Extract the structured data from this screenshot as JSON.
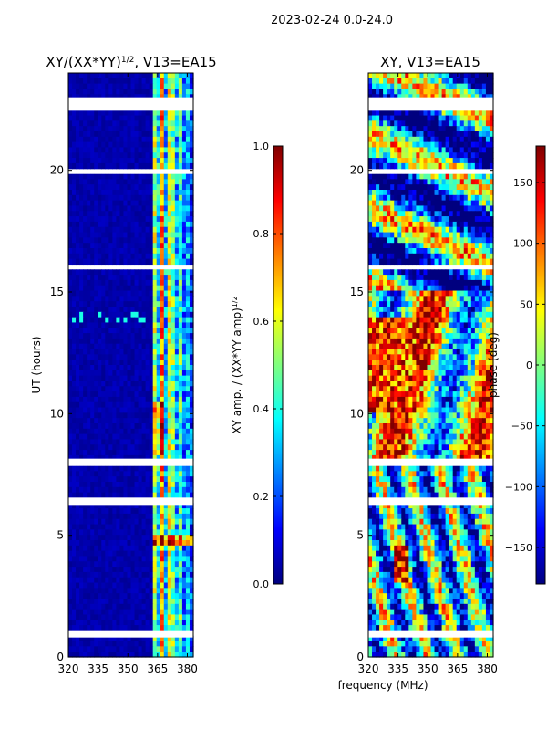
{
  "figure": {
    "suptitle": "2023-02-24 0.0-24.0",
    "xlabel": "frequency (MHz)"
  },
  "chart_data": [
    {
      "type": "heatmap",
      "title_main": "XY/(XX*YY)",
      "title_sup": "1/2",
      "title_tail": ", V13=EA15",
      "ylabel": "UT (hours)",
      "xlim": [
        320,
        383
      ],
      "ylim": [
        0,
        24
      ],
      "xticks": [
        320,
        335,
        350,
        365,
        380
      ],
      "yticks": [
        0,
        5,
        10,
        15,
        20
      ],
      "quantity": "normalized XY amplitude",
      "colorbar": {
        "label_main": "XY amp. / (XX*YY amp)",
        "label_sup": "1/2",
        "range": [
          0.0,
          1.0
        ],
        "ticks": [
          0.0,
          0.2,
          0.4,
          0.6,
          0.8,
          1.0
        ],
        "tick_labels": [
          "0.0",
          "0.2",
          "0.4",
          "0.6",
          "0.8",
          "1.0"
        ],
        "colormap": "jet"
      }
    },
    {
      "type": "heatmap",
      "title": "XY, V13=EA15",
      "xlim": [
        320,
        383
      ],
      "ylim": [
        0,
        24
      ],
      "xticks": [
        320,
        335,
        350,
        365,
        380
      ],
      "yticks": [
        0,
        5,
        10,
        15,
        20
      ],
      "quantity": "XY phase",
      "colorbar": {
        "label": "phase (deg)",
        "range": [
          -180,
          180
        ],
        "ticks": [
          -150,
          -100,
          -50,
          0,
          50,
          100,
          150
        ],
        "tick_labels": [
          "−150",
          "−100",
          "−50",
          "0",
          "50",
          "100",
          "150"
        ],
        "colormap": "jet"
      }
    }
  ],
  "flagged_ut_ranges": [
    [
      0.8,
      1.1
    ],
    [
      6.25,
      6.55
    ],
    [
      7.85,
      8.15
    ],
    [
      16.0,
      16.1
    ],
    [
      19.85,
      20.0
    ],
    [
      22.45,
      22.6
    ],
    [
      22.8,
      23.0
    ]
  ],
  "colors": {
    "jet_stops": [
      "#00007f",
      "#0000ff",
      "#007fff",
      "#00ffff",
      "#7fff7f",
      "#ffff00",
      "#ff7f00",
      "#ff0000",
      "#7f0000"
    ]
  }
}
